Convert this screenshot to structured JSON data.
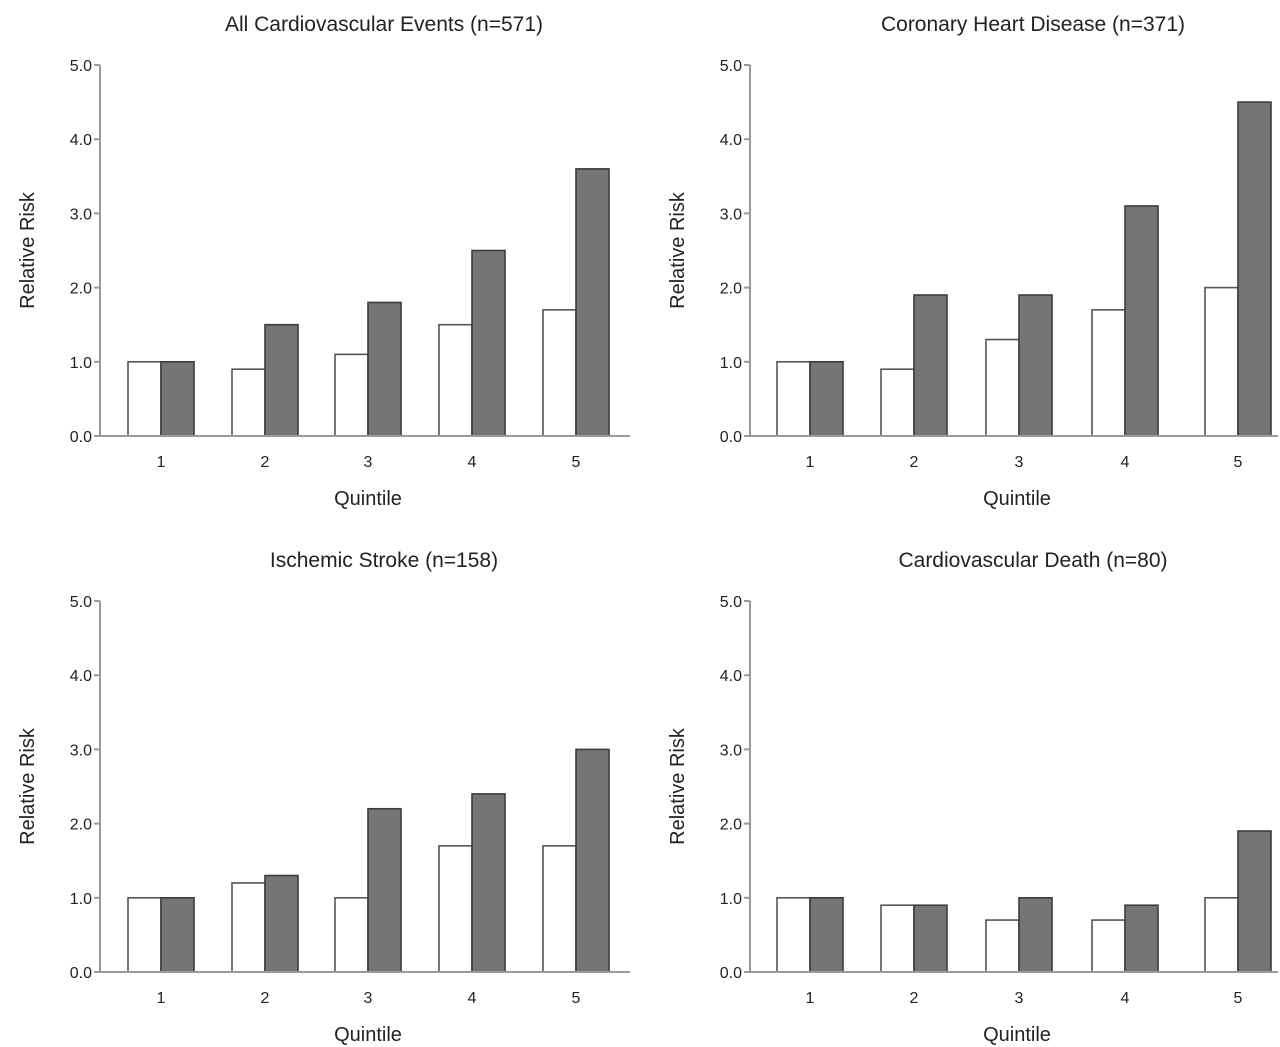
{
  "chart_data": [
    {
      "type": "bar",
      "title": "All Cardiovascular Events (n=571)",
      "xlabel": "Quintile",
      "ylabel": "Relative Risk",
      "categories": [
        "1",
        "2",
        "3",
        "4",
        "5"
      ],
      "ylim": [
        0,
        5
      ],
      "yticks": [
        "0.0",
        "1.0",
        "2.0",
        "3.0",
        "4.0",
        "5.0"
      ],
      "series": [
        {
          "style": "open",
          "color": "#ffffff",
          "values": [
            1.0,
            0.9,
            1.1,
            1.5,
            1.7
          ]
        },
        {
          "style": "filled",
          "color": "#757575",
          "values": [
            1.0,
            1.5,
            1.8,
            2.5,
            3.6
          ]
        }
      ],
      "grid": false
    },
    {
      "type": "bar",
      "title": "Coronary Heart Disease (n=371)",
      "xlabel": "Quintile",
      "ylabel": "Relative Risk",
      "categories": [
        "1",
        "2",
        "3",
        "4",
        "5"
      ],
      "ylim": [
        0,
        5
      ],
      "yticks": [
        "0.0",
        "1.0",
        "2.0",
        "3.0",
        "4.0",
        "5.0"
      ],
      "series": [
        {
          "style": "open",
          "color": "#ffffff",
          "values": [
            1.0,
            0.9,
            1.3,
            1.7,
            2.0
          ]
        },
        {
          "style": "filled",
          "color": "#757575",
          "values": [
            1.0,
            1.9,
            1.9,
            3.1,
            4.5
          ]
        }
      ],
      "grid": false
    },
    {
      "type": "bar",
      "title": "Ischemic Stroke (n=158)",
      "xlabel": "Quintile",
      "ylabel": "Relative Risk",
      "categories": [
        "1",
        "2",
        "3",
        "4",
        "5"
      ],
      "ylim": [
        0,
        5
      ],
      "yticks": [
        "0.0",
        "1.0",
        "2.0",
        "3.0",
        "4.0",
        "5.0"
      ],
      "series": [
        {
          "style": "open",
          "color": "#ffffff",
          "values": [
            1.0,
            1.2,
            1.0,
            1.7,
            1.7
          ]
        },
        {
          "style": "filled",
          "color": "#757575",
          "values": [
            1.0,
            1.3,
            2.2,
            2.4,
            3.0
          ]
        }
      ],
      "grid": false
    },
    {
      "type": "bar",
      "title": "Cardiovascular Death (n=80)",
      "xlabel": "Quintile",
      "ylabel": "Relative Risk",
      "categories": [
        "1",
        "2",
        "3",
        "4",
        "5"
      ],
      "ylim": [
        0,
        5
      ],
      "yticks": [
        "0.0",
        "1.0",
        "2.0",
        "3.0",
        "4.0",
        "5.0"
      ],
      "series": [
        {
          "style": "open",
          "color": "#ffffff",
          "values": [
            1.0,
            0.9,
            0.7,
            0.7,
            1.0
          ]
        },
        {
          "style": "filled",
          "color": "#757575",
          "values": [
            1.0,
            0.9,
            1.0,
            0.9,
            1.9
          ]
        }
      ],
      "grid": false
    }
  ]
}
